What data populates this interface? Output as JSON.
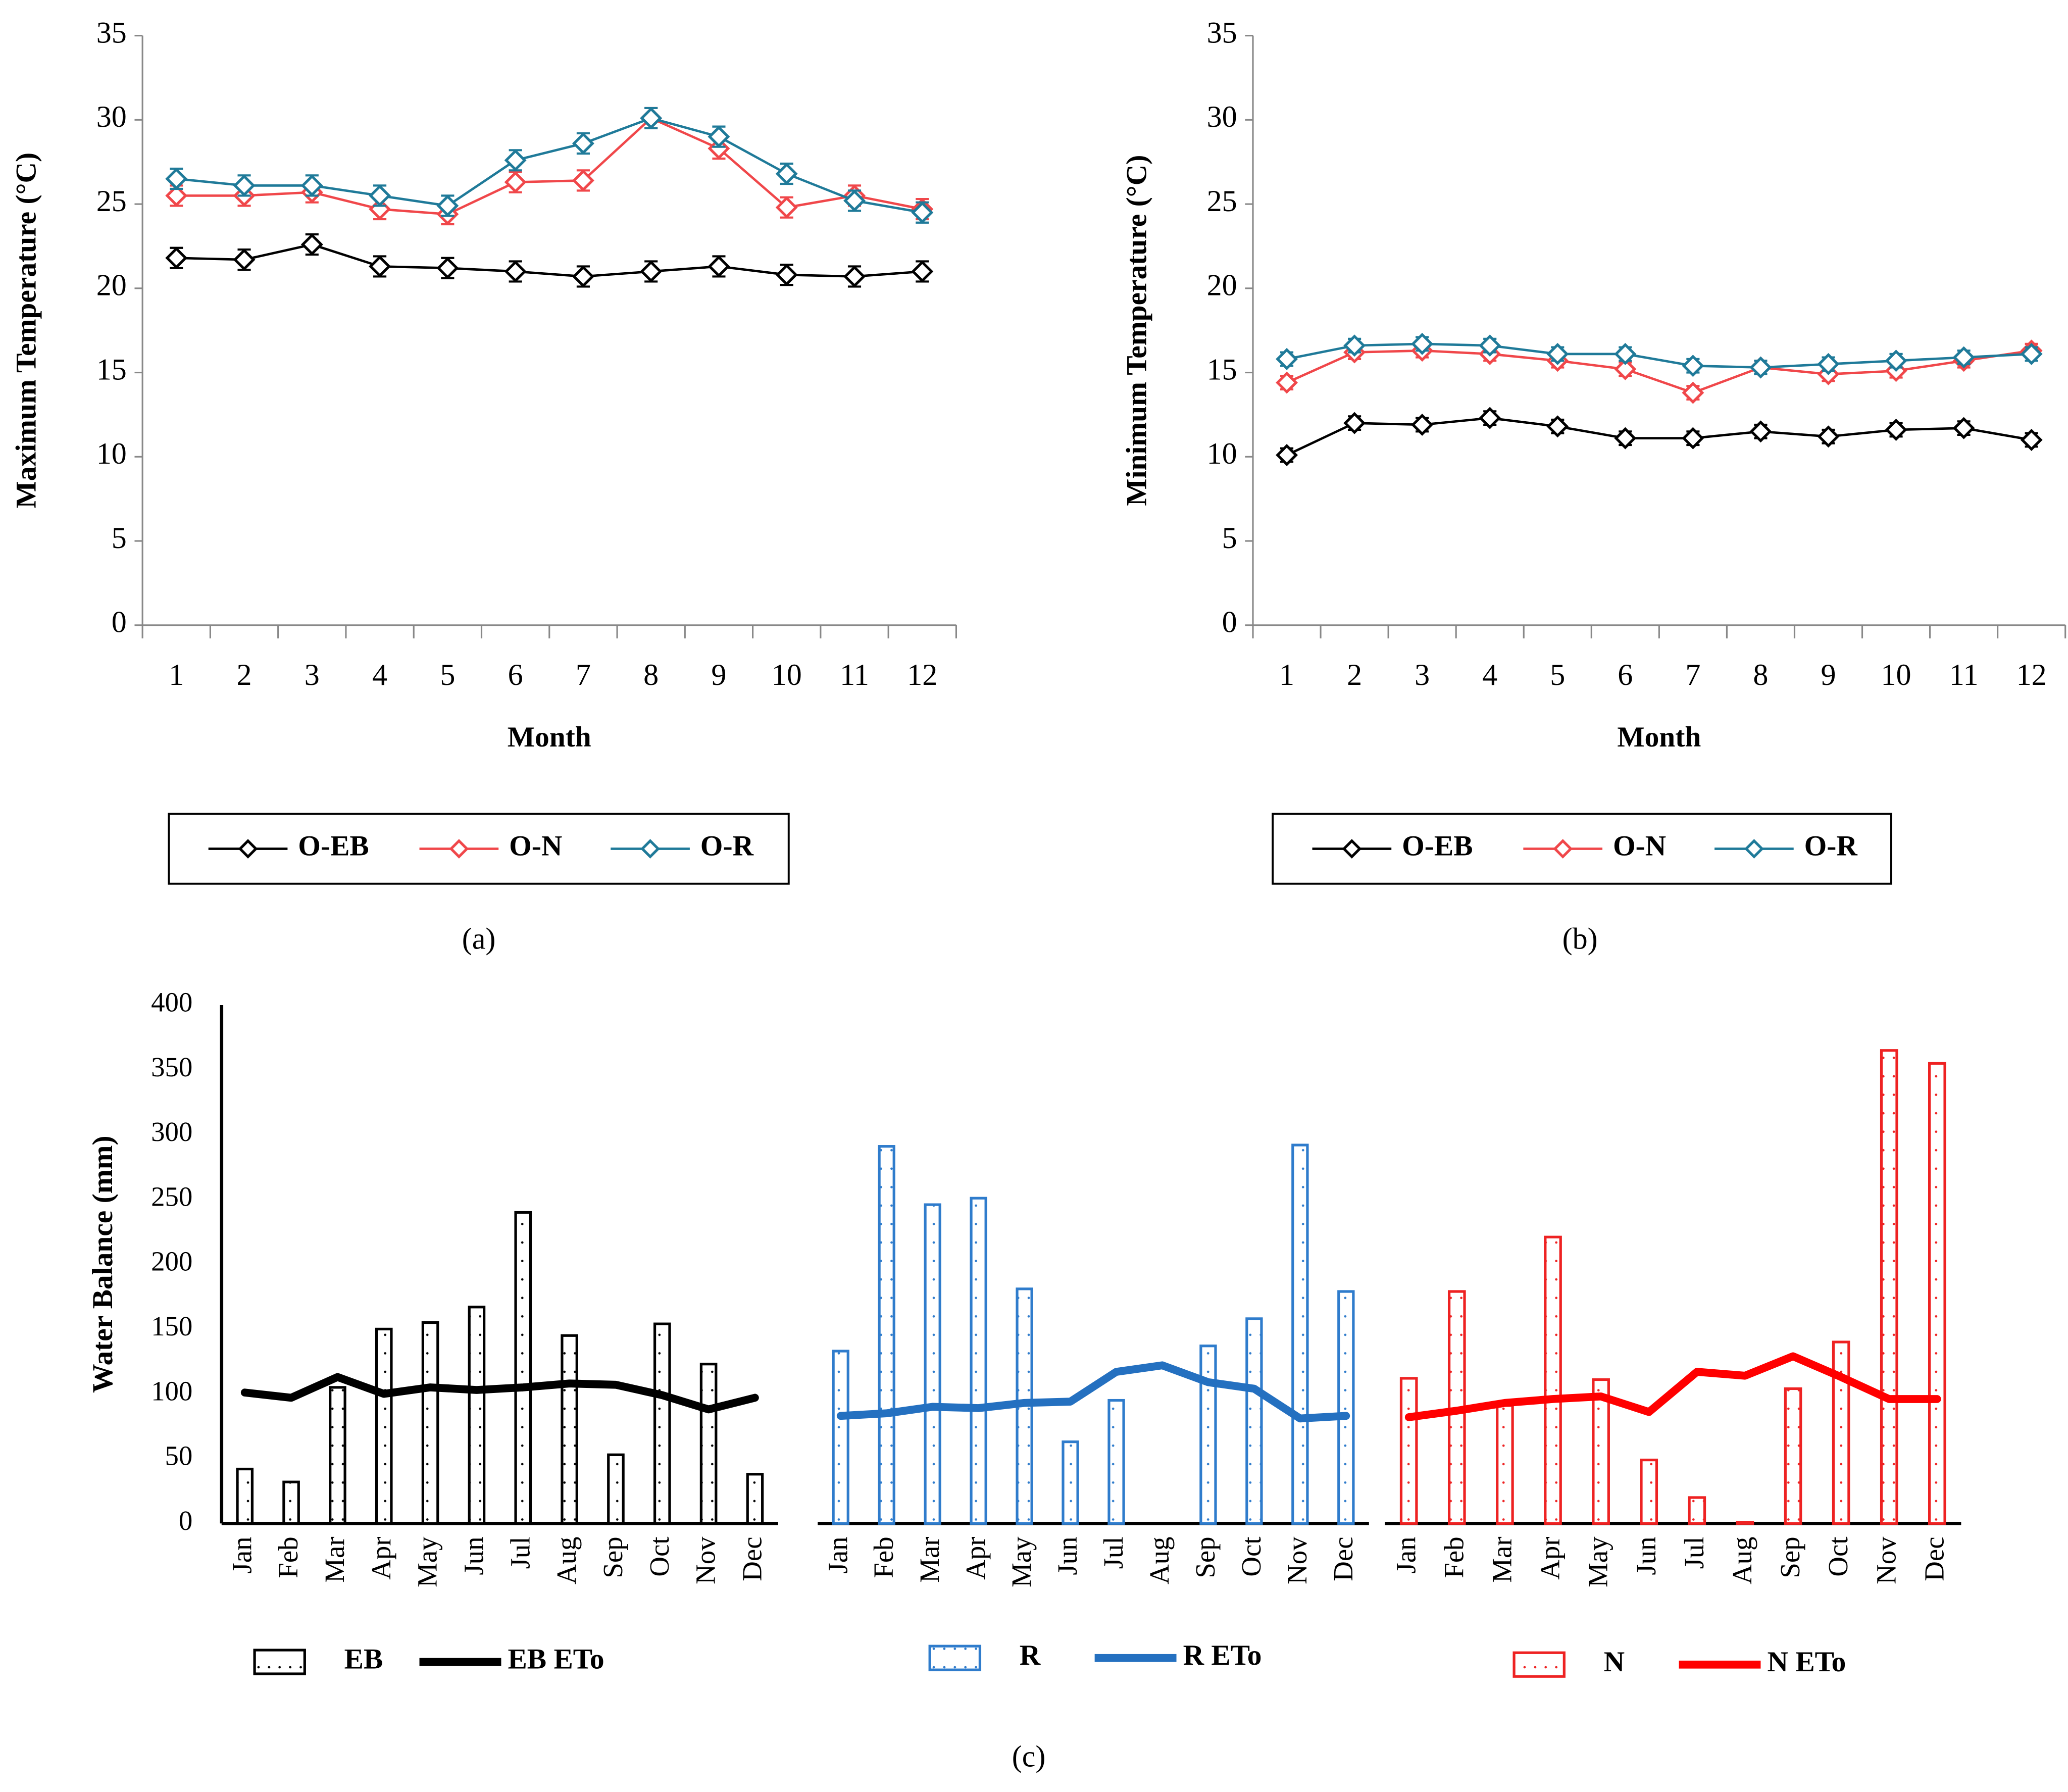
{
  "chart_data": [
    {
      "type": "line",
      "label": "(a)",
      "ylabel": "Maximum Temperature (°C)",
      "xlabel": "Month",
      "categories": [
        "1",
        "2",
        "3",
        "4",
        "5",
        "6",
        "7",
        "8",
        "9",
        "10",
        "11",
        "12"
      ],
      "ylim": [
        0,
        35
      ],
      "yticks": [
        0,
        5,
        10,
        15,
        20,
        25,
        30,
        35
      ],
      "series": [
        {
          "name": "O-EB",
          "color": "#000000",
          "error": 0.6,
          "values": [
            21.8,
            21.7,
            22.6,
            21.3,
            21.2,
            21.0,
            20.7,
            21.0,
            21.3,
            20.8,
            20.7,
            21.0
          ]
        },
        {
          "name": "O-N",
          "color": "#f0474a",
          "error": 0.6,
          "values": [
            25.5,
            25.5,
            25.7,
            24.7,
            24.4,
            26.3,
            26.4,
            30.1,
            28.3,
            24.8,
            25.5,
            24.7
          ]
        },
        {
          "name": "O-R",
          "color": "#1f7a99",
          "error": 0.6,
          "values": [
            26.5,
            26.1,
            26.1,
            25.5,
            24.9,
            27.6,
            28.6,
            30.1,
            29.0,
            26.8,
            25.2,
            24.5
          ]
        }
      ]
    },
    {
      "type": "line",
      "label": "(b)",
      "ylabel": "Minimum Temperature (°C)",
      "xlabel": "Month",
      "categories": [
        "1",
        "2",
        "3",
        "4",
        "5",
        "6",
        "7",
        "8",
        "9",
        "10",
        "11",
        "12"
      ],
      "ylim": [
        0,
        35
      ],
      "yticks": [
        0,
        5,
        10,
        15,
        20,
        25,
        30,
        35
      ],
      "series": [
        {
          "name": "O-EB",
          "color": "#000000",
          "error": 0.4,
          "values": [
            10.1,
            12.0,
            11.9,
            12.3,
            11.8,
            11.1,
            11.1,
            11.5,
            11.2,
            11.6,
            11.7,
            11.0
          ]
        },
        {
          "name": "O-N",
          "color": "#f0474a",
          "error": 0.4,
          "values": [
            14.4,
            16.2,
            16.3,
            16.1,
            15.7,
            15.2,
            13.8,
            15.3,
            14.9,
            15.1,
            15.7,
            16.3
          ]
        },
        {
          "name": "O-R",
          "color": "#1f7a99",
          "error": 0.4,
          "values": [
            15.8,
            16.6,
            16.7,
            16.6,
            16.1,
            16.1,
            15.4,
            15.3,
            15.5,
            15.7,
            15.9,
            16.1
          ]
        }
      ]
    },
    {
      "type": "combo",
      "label": "(c)",
      "ylabel": "Water Balance (mm)",
      "categories": [
        "Jan",
        "Feb",
        "Mar",
        "Apr",
        "May",
        "Jun",
        "Jul",
        "Aug",
        "Sep",
        "Oct",
        "Nov",
        "Dec"
      ],
      "ylim": [
        0,
        400
      ],
      "yticks": [
        0,
        50,
        100,
        150,
        200,
        250,
        300,
        350,
        400
      ],
      "series": [
        {
          "name": "EB",
          "type": "bar",
          "color": "#000000",
          "values": [
            42,
            32,
            105,
            150,
            155,
            167,
            240,
            145,
            53,
            154,
            123,
            38
          ]
        },
        {
          "name": "EB ETo",
          "type": "line",
          "color": "#000000",
          "values": [
            101,
            97,
            113,
            100,
            105,
            103,
            105,
            108,
            107,
            99,
            88,
            97
          ]
        }
      ]
    },
    {
      "type": "combo",
      "categories": [
        "Jan",
        "Feb",
        "Mar",
        "Apr",
        "May",
        "Jun",
        "Jul",
        "Aug",
        "Sep",
        "Oct",
        "Nov",
        "Dec"
      ],
      "ylim": [
        0,
        400
      ],
      "series": [
        {
          "name": "R",
          "type": "bar",
          "color": "#2f7ccc",
          "values": [
            133,
            291,
            246,
            251,
            181,
            63,
            95,
            0,
            137,
            158,
            292,
            179
          ]
        },
        {
          "name": "R ETo",
          "type": "line",
          "color": "#2470c0",
          "values": [
            83,
            85,
            90,
            89,
            93,
            94,
            117,
            122,
            109,
            104,
            81,
            83
          ]
        }
      ]
    },
    {
      "type": "combo",
      "categories": [
        "Jan",
        "Feb",
        "Mar",
        "Apr",
        "May",
        "Jun",
        "Jul",
        "Aug",
        "Sep",
        "Oct",
        "Nov",
        "Dec"
      ],
      "ylim": [
        0,
        400
      ],
      "series": [
        {
          "name": "N",
          "type": "bar",
          "color": "#ee2222",
          "values": [
            112,
            179,
            91,
            221,
            111,
            49,
            20,
            1,
            104,
            140,
            365,
            355
          ]
        },
        {
          "name": "N ETo",
          "type": "line",
          "color": "#ff0000",
          "values": [
            82,
            87,
            93,
            96,
            98,
            86,
            117,
            114,
            129,
            113,
            96,
            96
          ]
        }
      ]
    }
  ]
}
